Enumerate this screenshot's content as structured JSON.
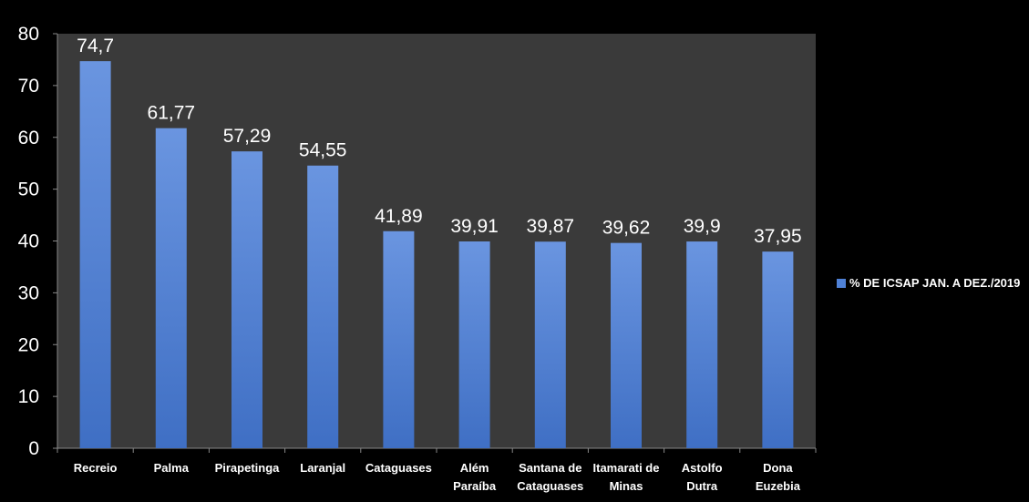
{
  "chart_data": {
    "type": "bar",
    "title": "",
    "xlabel": "",
    "ylabel": "",
    "ylim": [
      0,
      80
    ],
    "yticks": [
      0,
      10,
      20,
      30,
      40,
      50,
      60,
      70,
      80
    ],
    "grid": false,
    "legend_position": "right",
    "categories": [
      [
        "Recreio"
      ],
      [
        "Palma"
      ],
      [
        "Pirapetinga"
      ],
      [
        "Laranjal"
      ],
      [
        "Cataguases"
      ],
      [
        "Além",
        "Paraíba"
      ],
      [
        "Santana de",
        "Cataguases"
      ],
      [
        "Itamarati de",
        "Minas"
      ],
      [
        "Astolfo",
        "Dutra"
      ],
      [
        "Dona",
        "Euzebia"
      ]
    ],
    "series": [
      {
        "name": "% DE ICSAP JAN. A DEZ./2019",
        "values": [
          74.7,
          61.77,
          57.29,
          54.55,
          41.89,
          39.91,
          39.87,
          39.62,
          39.9,
          37.95
        ],
        "labels": [
          "74,7",
          "61,77",
          "57,29",
          "54,55",
          "41,89",
          "39,91",
          "39,87",
          "39,62",
          "39,9",
          "37,95"
        ]
      }
    ],
    "colors": {
      "background": "#000000",
      "plot_area": "#3a3a3a",
      "bar": "#4f81d6",
      "text": "#ffffff"
    }
  }
}
